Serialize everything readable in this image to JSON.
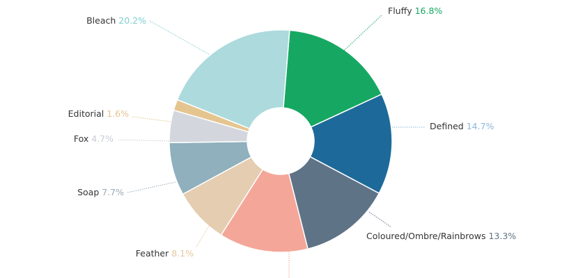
{
  "chart_data": {
    "type": "pie",
    "donut": true,
    "title": "",
    "legend": "none",
    "slices": [
      {
        "label": "Fluffy",
        "value": 16.8,
        "value_label": "16.8%",
        "color": "#16a862",
        "label_color": "#16a862"
      },
      {
        "label": "Defined",
        "value": 14.7,
        "value_label": "14.7%",
        "color": "#1d6a9a",
        "label_color": "#8bb8dd"
      },
      {
        "label": "Coloured/Ombre/Rainbrows",
        "value": 13.3,
        "value_label": "13.3%",
        "color": "#5f7386",
        "label_color": "#5f7386"
      },
      {
        "label": "",
        "value": 12.9,
        "value_label": "",
        "color": "#f4a698",
        "label_color": "#f4a698"
      },
      {
        "label": "Feather",
        "value": 8.1,
        "value_label": "8.1%",
        "color": "#e5cdb1",
        "label_color": "#e5c79f"
      },
      {
        "label": "Soap",
        "value": 7.7,
        "value_label": "7.7%",
        "color": "#8fb0bc",
        "label_color": "#9aaab8"
      },
      {
        "label": "Fox",
        "value": 4.7,
        "value_label": "4.7%",
        "color": "#d3d6dd",
        "label_color": "#c8ccd6"
      },
      {
        "label": "Editorial",
        "value": 1.6,
        "value_label": "1.6%",
        "color": "#e5c58f",
        "label_color": "#e5c58f"
      },
      {
        "label": "Bleach",
        "value": 20.2,
        "value_label": "20.2%",
        "color": "#acdadd",
        "label_color": "#7ecfd2"
      }
    ]
  }
}
